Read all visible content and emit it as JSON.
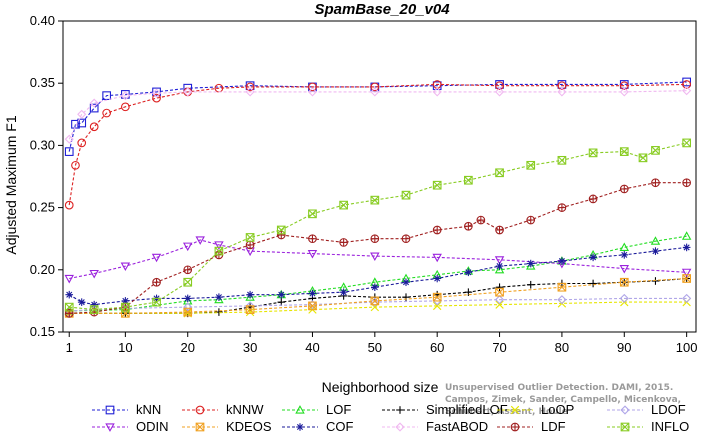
{
  "chart_data": {
    "type": "line",
    "title": "SpamBase_20_v04",
    "xlabel": "Neighborhood size",
    "ylabel": "Adjusted Maximum F1",
    "xlim": [
      1,
      100
    ],
    "ylim": [
      0.15,
      0.4
    ],
    "x_ticks": [
      1,
      10,
      20,
      30,
      40,
      50,
      60,
      70,
      80,
      90,
      100
    ],
    "y_ticks": [
      0.15,
      0.2,
      0.25,
      0.3,
      0.35,
      0.4
    ],
    "y_tick_labels": [
      "0.15",
      "0.20",
      "0.25",
      "0.30",
      "0.35",
      "0.40"
    ],
    "grid": false,
    "legend_position": "bottom",
    "series": [
      {
        "name": "kNN",
        "color": "#1f1fd6",
        "marker": "square",
        "x": [
          1,
          2,
          3,
          5,
          7,
          10,
          15,
          20,
          30,
          40,
          50,
          60,
          70,
          80,
          90,
          100
        ],
        "y": [
          0.295,
          0.317,
          0.318,
          0.33,
          0.34,
          0.341,
          0.343,
          0.346,
          0.348,
          0.347,
          0.347,
          0.348,
          0.349,
          0.349,
          0.349,
          0.351
        ]
      },
      {
        "name": "kNNW",
        "color": "#dd2222",
        "marker": "circle",
        "x": [
          1,
          2,
          3,
          5,
          7,
          10,
          15,
          20,
          25,
          30,
          40,
          50,
          60,
          70,
          80,
          90,
          100
        ],
        "y": [
          0.252,
          0.284,
          0.302,
          0.315,
          0.326,
          0.331,
          0.338,
          0.343,
          0.346,
          0.347,
          0.347,
          0.347,
          0.349,
          0.348,
          0.348,
          0.348,
          0.349
        ]
      },
      {
        "name": "LOF",
        "color": "#22dd22",
        "marker": "triangle",
        "x": [
          1,
          10,
          20,
          25,
          30,
          35,
          40,
          45,
          50,
          55,
          60,
          65,
          70,
          75,
          80,
          85,
          90,
          95,
          100
        ],
        "y": [
          0.167,
          0.168,
          0.175,
          0.176,
          0.178,
          0.18,
          0.183,
          0.186,
          0.19,
          0.193,
          0.196,
          0.199,
          0.2,
          0.203,
          0.207,
          0.212,
          0.218,
          0.223,
          0.227
        ]
      },
      {
        "name": "SimplifiedLOF",
        "color": "#000000",
        "marker": "plus",
        "x": [
          1,
          10,
          20,
          25,
          30,
          35,
          40,
          45,
          50,
          55,
          60,
          65,
          70,
          75,
          80,
          85,
          90,
          95,
          100
        ],
        "y": [
          0.165,
          0.165,
          0.165,
          0.166,
          0.17,
          0.174,
          0.177,
          0.179,
          0.178,
          0.178,
          0.18,
          0.182,
          0.186,
          0.188,
          0.189,
          0.189,
          0.19,
          0.191,
          0.193
        ]
      },
      {
        "name": "LoOP",
        "color": "#e6e600",
        "marker": "x",
        "x": [
          1,
          10,
          20,
          30,
          40,
          50,
          60,
          70,
          80,
          90,
          100
        ],
        "y": [
          0.165,
          0.165,
          0.165,
          0.166,
          0.168,
          0.17,
          0.171,
          0.172,
          0.173,
          0.174,
          0.174
        ]
      },
      {
        "name": "LDOF",
        "color": "#b0a6e8",
        "marker": "diamond",
        "x": [
          1,
          10,
          20,
          30,
          40,
          50,
          60,
          70,
          80,
          90,
          100
        ],
        "y": [
          0.167,
          0.169,
          0.17,
          0.171,
          0.172,
          0.174,
          0.175,
          0.176,
          0.176,
          0.177,
          0.177
        ]
      },
      {
        "name": "ODIN",
        "color": "#9b22dd",
        "marker": "triangle-down",
        "x": [
          1,
          5,
          10,
          15,
          20,
          22,
          25,
          30,
          40,
          50,
          60,
          70,
          80,
          90,
          100
        ],
        "y": [
          0.193,
          0.197,
          0.203,
          0.21,
          0.219,
          0.224,
          0.22,
          0.215,
          0.213,
          0.211,
          0.21,
          0.208,
          0.205,
          0.201,
          0.198
        ]
      },
      {
        "name": "KDEOS",
        "color": "#f0a020",
        "marker": "square-x",
        "x": [
          1,
          10,
          20,
          30,
          40,
          50,
          60,
          70,
          80,
          90,
          100
        ],
        "y": [
          0.165,
          0.165,
          0.166,
          0.168,
          0.171,
          0.175,
          0.178,
          0.182,
          0.186,
          0.19,
          0.193
        ]
      },
      {
        "name": "COF",
        "color": "#1a1a9a",
        "marker": "asterisk",
        "x": [
          1,
          3,
          5,
          10,
          15,
          20,
          25,
          30,
          35,
          40,
          45,
          50,
          55,
          60,
          65,
          70,
          75,
          80,
          85,
          90,
          95,
          100
        ],
        "y": [
          0.18,
          0.174,
          0.172,
          0.175,
          0.177,
          0.177,
          0.178,
          0.18,
          0.18,
          0.181,
          0.182,
          0.186,
          0.19,
          0.193,
          0.198,
          0.203,
          0.205,
          0.207,
          0.21,
          0.212,
          0.215,
          0.218
        ]
      },
      {
        "name": "FastABOD",
        "color": "#f0b8f0",
        "marker": "diamond",
        "x": [
          1,
          3,
          5,
          10,
          15,
          20,
          30,
          40,
          50,
          60,
          70,
          80,
          90,
          100
        ],
        "y": [
          0.305,
          0.325,
          0.334,
          0.34,
          0.342,
          0.343,
          0.343,
          0.343,
          0.343,
          0.343,
          0.343,
          0.343,
          0.343,
          0.344
        ]
      },
      {
        "name": "LDF",
        "color": "#a02020",
        "marker": "circle-plus",
        "x": [
          1,
          5,
          10,
          15,
          20,
          25,
          30,
          35,
          40,
          45,
          50,
          55,
          60,
          65,
          67,
          70,
          75,
          80,
          85,
          90,
          95,
          100
        ],
        "y": [
          0.165,
          0.166,
          0.17,
          0.19,
          0.2,
          0.212,
          0.22,
          0.228,
          0.225,
          0.222,
          0.225,
          0.225,
          0.232,
          0.235,
          0.24,
          0.232,
          0.24,
          0.25,
          0.257,
          0.265,
          0.27,
          0.27
        ]
      },
      {
        "name": "INFLO",
        "color": "#88cc22",
        "marker": "square-x",
        "x": [
          1,
          5,
          10,
          15,
          20,
          25,
          30,
          35,
          40,
          45,
          50,
          55,
          60,
          65,
          70,
          75,
          80,
          85,
          90,
          93,
          95,
          100
        ],
        "y": [
          0.17,
          0.168,
          0.17,
          0.174,
          0.19,
          0.215,
          0.226,
          0.232,
          0.245,
          0.252,
          0.256,
          0.26,
          0.268,
          0.272,
          0.278,
          0.284,
          0.288,
          0.294,
          0.295,
          0.29,
          0.296,
          0.302
        ]
      }
    ]
  },
  "credit": {
    "line1": "Unsupervised Outlier Detection. DAMI, 2015.",
    "line2": "Campos, Zimek, Sander, Campello, Micenkova, Schubert, Assent, Houle"
  }
}
